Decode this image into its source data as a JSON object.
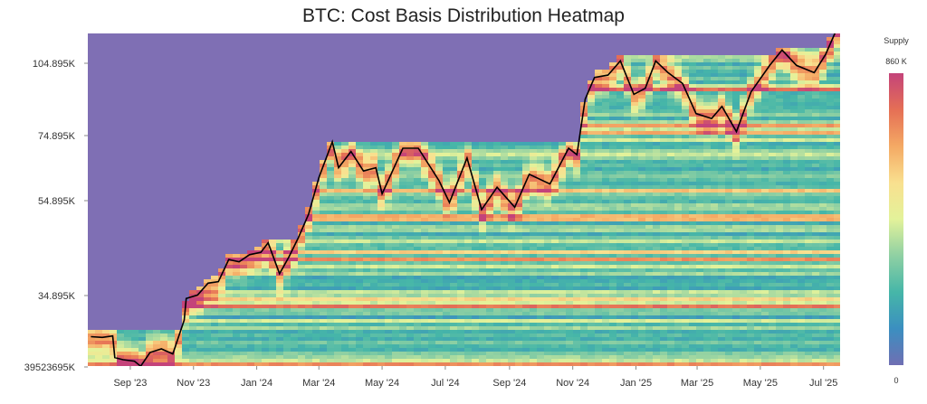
{
  "chart_data": {
    "type": "heatmap",
    "title": "BTC: Cost Basis Distribution Heatmap",
    "xlabel": "",
    "ylabel": "",
    "x_ticks": [
      "Sep '23",
      "Nov '23",
      "Jan '24",
      "Mar '24",
      "May '24",
      "Jul '24",
      "Sep '24",
      "Nov '24",
      "Jan '25",
      "Mar '25",
      "May '25",
      "Jul '25"
    ],
    "y_ticks": [
      "104.895K",
      "74.895K",
      "54.895K",
      "34.895K",
      "39523695K"
    ],
    "colorbar": {
      "title": "Supply",
      "max_label": "860 K",
      "min_label": "0",
      "range": [
        0,
        860000
      ],
      "colors": [
        "#6f6fb3",
        "#3b8fc0",
        "#46b6a8",
        "#8fd0a3",
        "#e3f29a",
        "#f9e08f",
        "#f4a964",
        "#e56f55",
        "#c4437a"
      ]
    },
    "background_color": "#7f6fb4",
    "price_line_color": "#000000",
    "series": [
      {
        "name": "",
        "points": [
          [
            "2023-07-25",
            29200
          ],
          [
            "2023-08-05",
            29100
          ],
          [
            "2023-08-15",
            29300
          ],
          [
            "2023-08-17",
            26300
          ],
          [
            "2023-08-25",
            26000
          ],
          [
            "2023-09-05",
            25800
          ],
          [
            "2023-09-11",
            25100
          ],
          [
            "2023-09-20",
            27000
          ],
          [
            "2023-10-01",
            27500
          ],
          [
            "2023-10-12",
            26800
          ],
          [
            "2023-10-23",
            31500
          ],
          [
            "2023-10-25",
            34500
          ],
          [
            "2023-11-05",
            35000
          ],
          [
            "2023-11-15",
            37500
          ],
          [
            "2023-11-25",
            37800
          ],
          [
            "2023-12-05",
            42500
          ],
          [
            "2023-12-15",
            42000
          ],
          [
            "2023-12-25",
            43500
          ],
          [
            "2024-01-05",
            44000
          ],
          [
            "2024-01-12",
            46000
          ],
          [
            "2024-01-23",
            39500
          ],
          [
            "2024-02-01",
            43000
          ],
          [
            "2024-02-10",
            47000
          ],
          [
            "2024-02-20",
            52000
          ],
          [
            "2024-03-01",
            62000
          ],
          [
            "2024-03-14",
            73000
          ],
          [
            "2024-03-20",
            65000
          ],
          [
            "2024-04-01",
            70000
          ],
          [
            "2024-04-13",
            64000
          ],
          [
            "2024-04-25",
            65000
          ],
          [
            "2024-05-01",
            57000
          ],
          [
            "2024-05-21",
            71000
          ],
          [
            "2024-06-05",
            71000
          ],
          [
            "2024-06-25",
            61000
          ],
          [
            "2024-07-05",
            54500
          ],
          [
            "2024-07-22",
            68000
          ],
          [
            "2024-08-05",
            53000
          ],
          [
            "2024-08-20",
            59000
          ],
          [
            "2024-09-06",
            53500
          ],
          [
            "2024-09-20",
            63000
          ],
          [
            "2024-10-10",
            60000
          ],
          [
            "2024-10-28",
            71000
          ],
          [
            "2024-11-05",
            69000
          ],
          [
            "2024-11-13",
            90000
          ],
          [
            "2024-11-22",
            99000
          ],
          [
            "2024-12-05",
            100000
          ],
          [
            "2024-12-17",
            106000
          ],
          [
            "2024-12-30",
            92000
          ],
          [
            "2025-01-10",
            94500
          ],
          [
            "2025-01-20",
            106000
          ],
          [
            "2025-02-01",
            101000
          ],
          [
            "2025-02-15",
            96500
          ],
          [
            "2025-02-28",
            84000
          ],
          [
            "2025-03-15",
            82000
          ],
          [
            "2025-03-25",
            87000
          ],
          [
            "2025-04-08",
            76500
          ],
          [
            "2025-04-22",
            93000
          ],
          [
            "2025-05-10",
            104000
          ],
          [
            "2025-05-22",
            111000
          ],
          [
            "2025-06-05",
            104000
          ],
          [
            "2025-06-22",
            101000
          ],
          [
            "2025-07-03",
            109000
          ],
          [
            "2025-07-14",
            121000
          ]
        ]
      }
    ]
  }
}
